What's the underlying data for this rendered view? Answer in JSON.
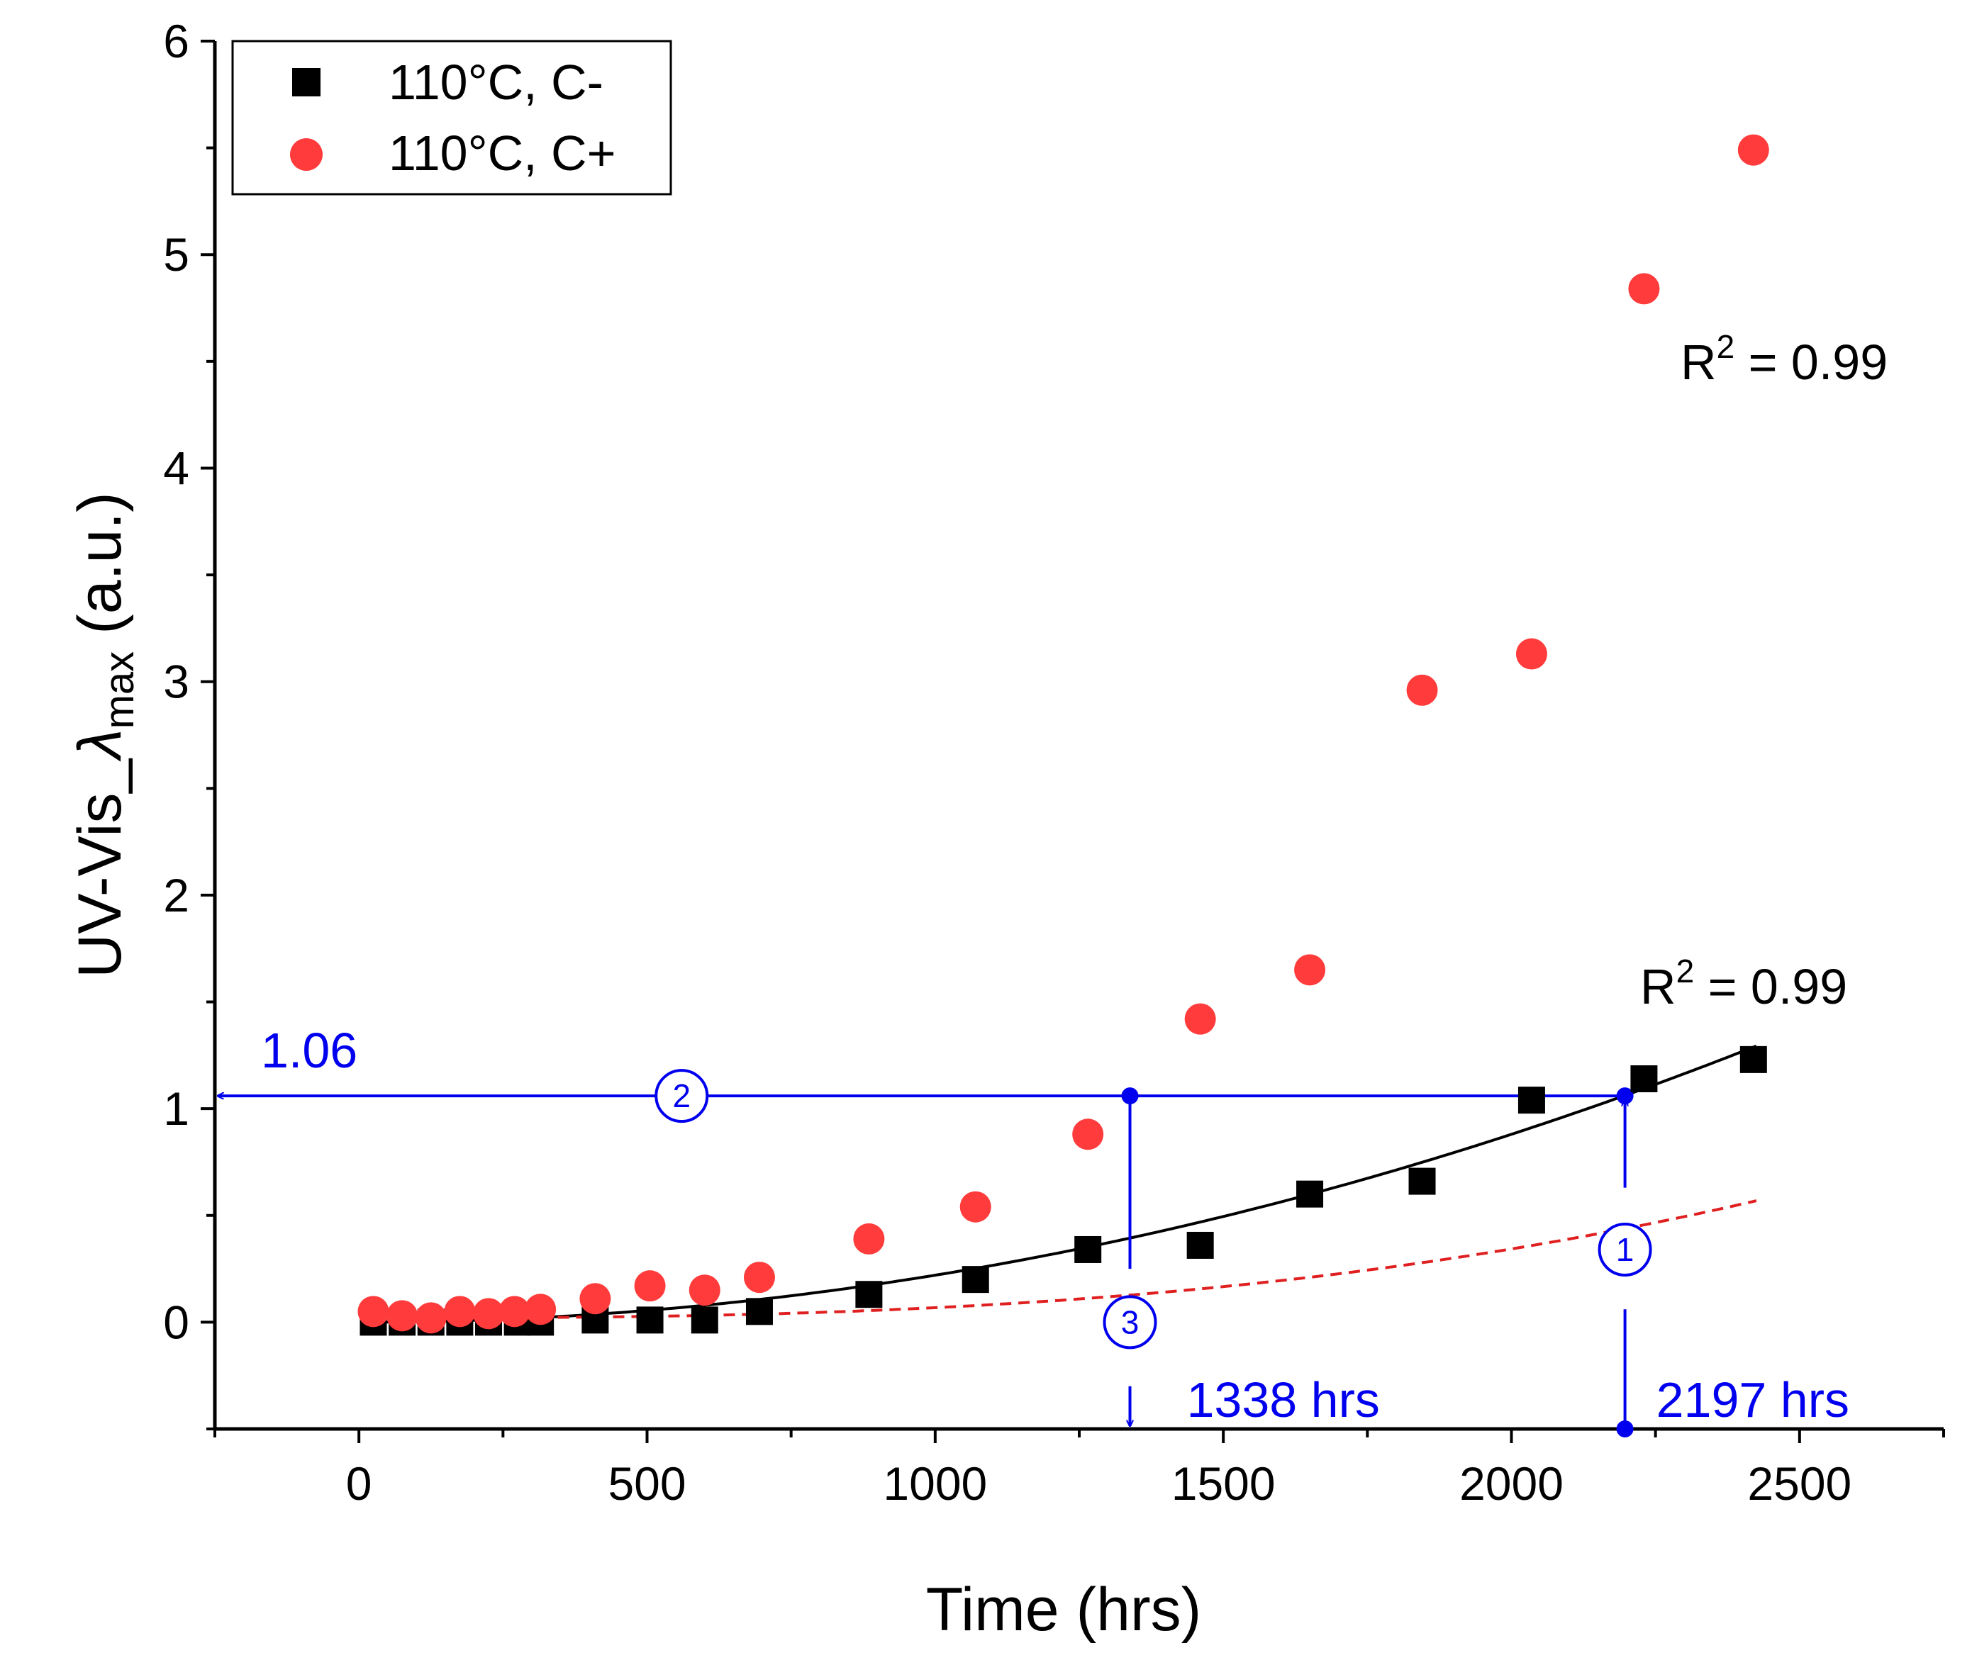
{
  "chart_data": {
    "type": "scatter",
    "title": "",
    "xlabel": "Time (hrs)",
    "ylabel_main": "UV-Vis_",
    "ylabel_symbol": "λ",
    "ylabel_sub": "max",
    "ylabel_unit": " (a.u.)",
    "xlim": [
      -250,
      2750
    ],
    "ylim": [
      -0.5,
      6
    ],
    "xticks": [
      0,
      500,
      1000,
      1500,
      2000,
      2500
    ],
    "xtick_labels": [
      "0",
      "500",
      "1000",
      "1500",
      "2000",
      "2500"
    ],
    "yticks": [
      0,
      1,
      2,
      3,
      4,
      5,
      6
    ],
    "ytick_labels": [
      "0",
      "1",
      "2",
      "3",
      "4",
      "5",
      "6"
    ],
    "legend_position": "top-left",
    "series": [
      {
        "name": "110°C, C-",
        "marker": "square",
        "color": "#000000",
        "fit_style": "solid",
        "r2_label": "R",
        "r2_exp": "2",
        "r2_value": " = 0.99",
        "x": [
          25,
          75,
          125,
          175,
          225,
          275,
          315,
          410,
          505,
          600,
          695,
          885,
          1070,
          1265,
          1460,
          1650,
          1845,
          2035,
          2230,
          2420
        ],
        "y": [
          0,
          0,
          0,
          0,
          0,
          0,
          0,
          0.01,
          0.01,
          0.01,
          0.05,
          0.13,
          0.2,
          0.34,
          0.36,
          0.6,
          0.66,
          1.04,
          1.14,
          1.23
        ],
        "fit_a": 2.2e-07
      },
      {
        "name": "110°C, C+",
        "marker": "circle",
        "color": "#ff3b3b",
        "fit_style": "dashed",
        "r2_label": "R",
        "r2_exp": "2",
        "r2_value": " = 0.99",
        "x": [
          25,
          75,
          125,
          175,
          225,
          270,
          315,
          410,
          505,
          600,
          695,
          885,
          1070,
          1265,
          1460,
          1650,
          1845,
          2035,
          2230,
          2420
        ],
        "y": [
          0.05,
          0.03,
          0.02,
          0.05,
          0.04,
          0.05,
          0.06,
          0.11,
          0.17,
          0.15,
          0.21,
          0.39,
          0.54,
          0.88,
          1.42,
          1.65,
          2.96,
          3.13,
          4.84,
          5.49
        ],
        "fit_a": 2.7e-10,
        "fit_b": 2.75,
        "fit_c": 0.02
      }
    ],
    "annotations": {
      "color": "#0000ee",
      "y_level": 1.06,
      "y_level_label": "1.06",
      "x_c_plus": 1338,
      "x_c_plus_label": "1338 hrs",
      "x_c_minus": 2197,
      "x_c_minus_label": "2197 hrs",
      "step1": "1",
      "step2": "2",
      "step3": "3"
    }
  }
}
